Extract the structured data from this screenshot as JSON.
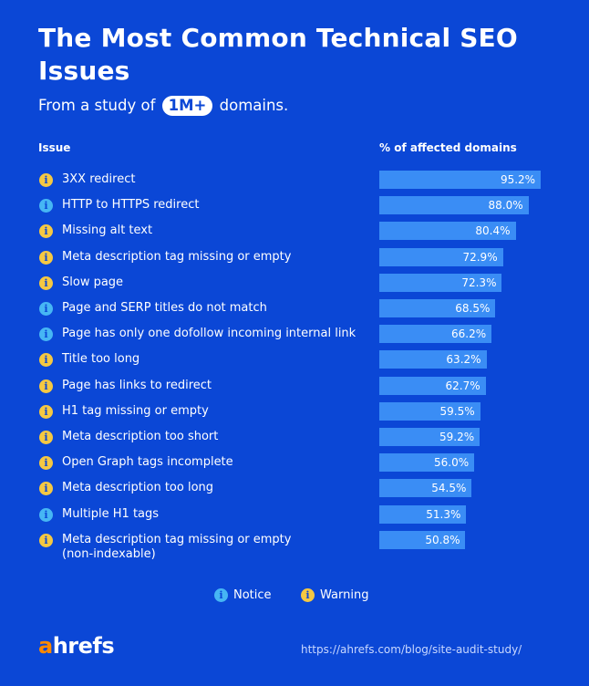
{
  "title": "The Most Common Technical SEO Issues",
  "subtitle": {
    "before": "From a study of",
    "highlight": "1M+",
    "after": "domains."
  },
  "headers": {
    "issue": "Issue",
    "pct": "% of affected domains"
  },
  "legend": {
    "notice": "Notice",
    "warning": "Warning"
  },
  "icon_glyph": "i",
  "colors": {
    "background": "#0b47d6",
    "bar": "#3a8df5",
    "warning": "#f5c842",
    "notice": "#46b6f4",
    "logo_accent": "#ff8a00"
  },
  "logo": {
    "accent": "a",
    "rest": "hrefs"
  },
  "url": "https://ahrefs.com/blog/site-audit-study/",
  "chart_data": {
    "type": "bar",
    "orientation": "horizontal",
    "categories": [
      "3XX redirect",
      "HTTP to HTTPS redirect",
      "Missing alt text",
      "Meta description tag missing or empty",
      "Slow page",
      "Page and SERP titles do not match",
      "Page has only one dofollow incoming internal link",
      "Title too long",
      "Page has links to redirect",
      "H1 tag missing or empty",
      "Meta description too short",
      "Open Graph tags incomplete",
      "Meta description too long",
      "Multiple H1 tags",
      "Meta description tag missing or empty\n(non-indexable)"
    ],
    "values": [
      95.2,
      88.0,
      80.4,
      72.9,
      72.3,
      68.5,
      66.2,
      63.2,
      62.7,
      59.5,
      59.2,
      56.0,
      54.5,
      51.3,
      50.8
    ],
    "value_labels": [
      "95.2%",
      "88.0%",
      "80.4%",
      "72.9%",
      "72.3%",
      "68.5%",
      "66.2%",
      "63.2%",
      "62.7%",
      "59.5%",
      "59.2%",
      "56.0%",
      "54.5%",
      "51.3%",
      "50.8%"
    ],
    "severity": [
      "warning",
      "notice",
      "warning",
      "warning",
      "warning",
      "notice",
      "notice",
      "warning",
      "warning",
      "warning",
      "warning",
      "warning",
      "warning",
      "notice",
      "warning"
    ],
    "xlim": [
      0,
      100
    ]
  }
}
